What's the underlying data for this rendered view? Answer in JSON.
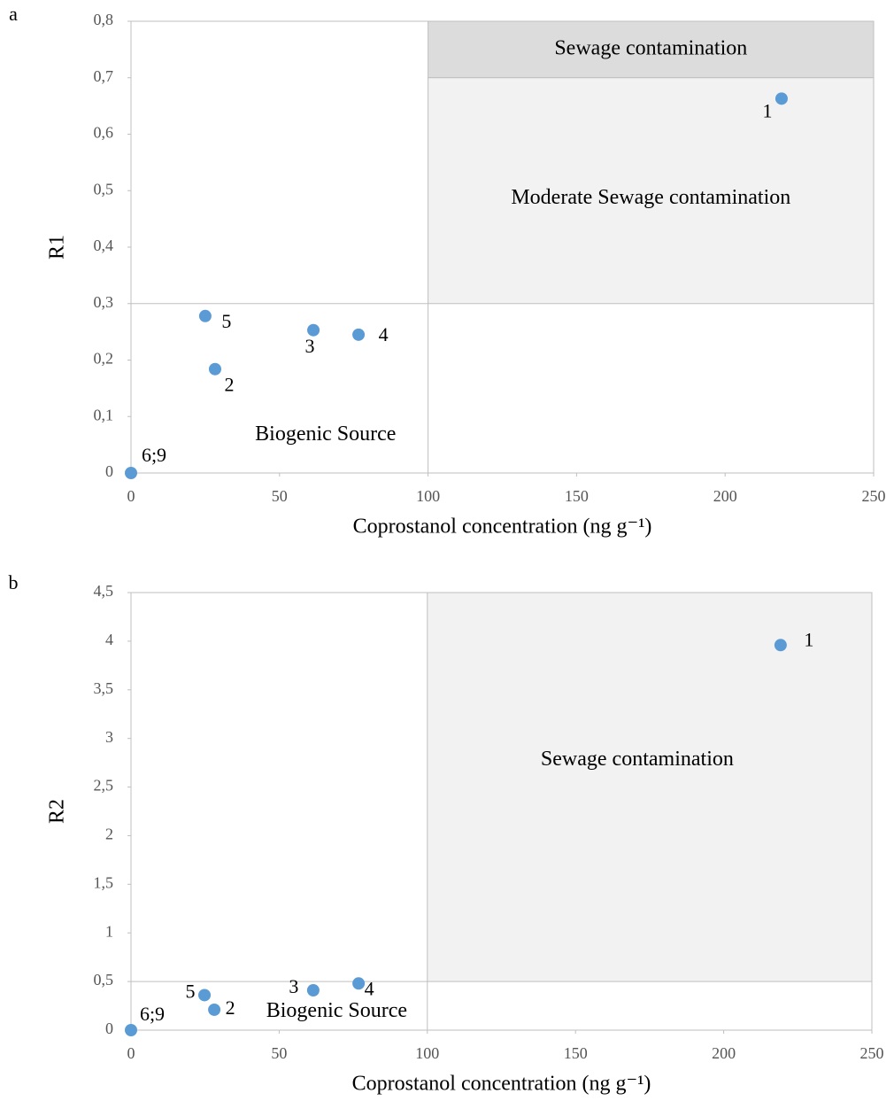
{
  "chart_data": [
    {
      "type": "scatter",
      "panel": "a",
      "xlabel": "Coprostanol concentration (ng g⁻¹)",
      "ylabel": "R1",
      "xlim": [
        0,
        250
      ],
      "ylim": [
        0,
        0.8
      ],
      "xticks": [
        0,
        50,
        100,
        150,
        200,
        250
      ],
      "yticks": [
        0,
        {
          "value": 0.1,
          "label": "0,1"
        },
        {
          "value": 0.2,
          "label": "0,2"
        },
        {
          "value": 0.3,
          "label": "0,3"
        },
        {
          "value": 0.4,
          "label": "0,4"
        },
        {
          "value": 0.5,
          "label": "0,5"
        },
        {
          "value": 0.6,
          "label": "0,6"
        },
        {
          "value": 0.7,
          "label": "0,7"
        },
        {
          "value": 0.8,
          "label": "0,8"
        }
      ],
      "series": [
        {
          "color": "#5b9bd5",
          "labels": [
            "1",
            "2",
            "3",
            "4",
            "5",
            "6;9"
          ],
          "x": [
            219,
            28.3,
            61.4,
            76.6,
            25,
            0
          ],
          "y": [
            0.663,
            0.184,
            0.253,
            0.245,
            0.278,
            0
          ]
        }
      ],
      "regions": [
        {
          "label": "Sewage contamination",
          "xlim": [
            100,
            250
          ],
          "ylim": [
            0.7,
            0.8
          ],
          "color": "#dcdcdc"
        },
        {
          "label": "Moderate Sewage contamination",
          "xlim": [
            100,
            250
          ],
          "ylim": [
            0.3,
            0.7
          ],
          "color": "#f2f2f2"
        },
        {
          "label": "Biogenic Source",
          "xlim": [
            0,
            100
          ],
          "ylim": [
            0,
            0.3
          ],
          "color": "#ffffff"
        }
      ]
    },
    {
      "type": "scatter",
      "panel": "b",
      "xlabel": "Coprostanol concentration (ng g⁻¹)",
      "ylabel": "R2",
      "xlim": [
        0,
        250
      ],
      "ylim": [
        0,
        4.5
      ],
      "xticks": [
        0,
        50,
        100,
        150,
        200,
        250
      ],
      "yticks": [
        0,
        {
          "value": 0.5,
          "label": "0,5"
        },
        1,
        {
          "value": 1.5,
          "label": "1,5"
        },
        2,
        {
          "value": 2.5,
          "label": "2,5"
        },
        3,
        {
          "value": 3.5,
          "label": "3,5"
        },
        4,
        {
          "value": 4.5,
          "label": "4,5"
        }
      ],
      "series": [
        {
          "color": "#5b9bd5",
          "labels": [
            "1",
            "2",
            "3",
            "4",
            "5",
            "6;9"
          ],
          "x": [
            219.2,
            28.1,
            61.5,
            76.8,
            24.8,
            0
          ],
          "y": [
            3.96,
            0.21,
            0.41,
            0.48,
            0.36,
            0
          ]
        }
      ],
      "regions": [
        {
          "label": "Sewage contamination",
          "xlim": [
            100,
            250
          ],
          "ylim": [
            0.5,
            4.5
          ],
          "color": "#f2f2f2"
        },
        {
          "label": "Biogenic Source",
          "xlim": [
            0,
            100
          ],
          "ylim": [
            0,
            0.5
          ],
          "color": "#ffffff"
        }
      ]
    }
  ]
}
